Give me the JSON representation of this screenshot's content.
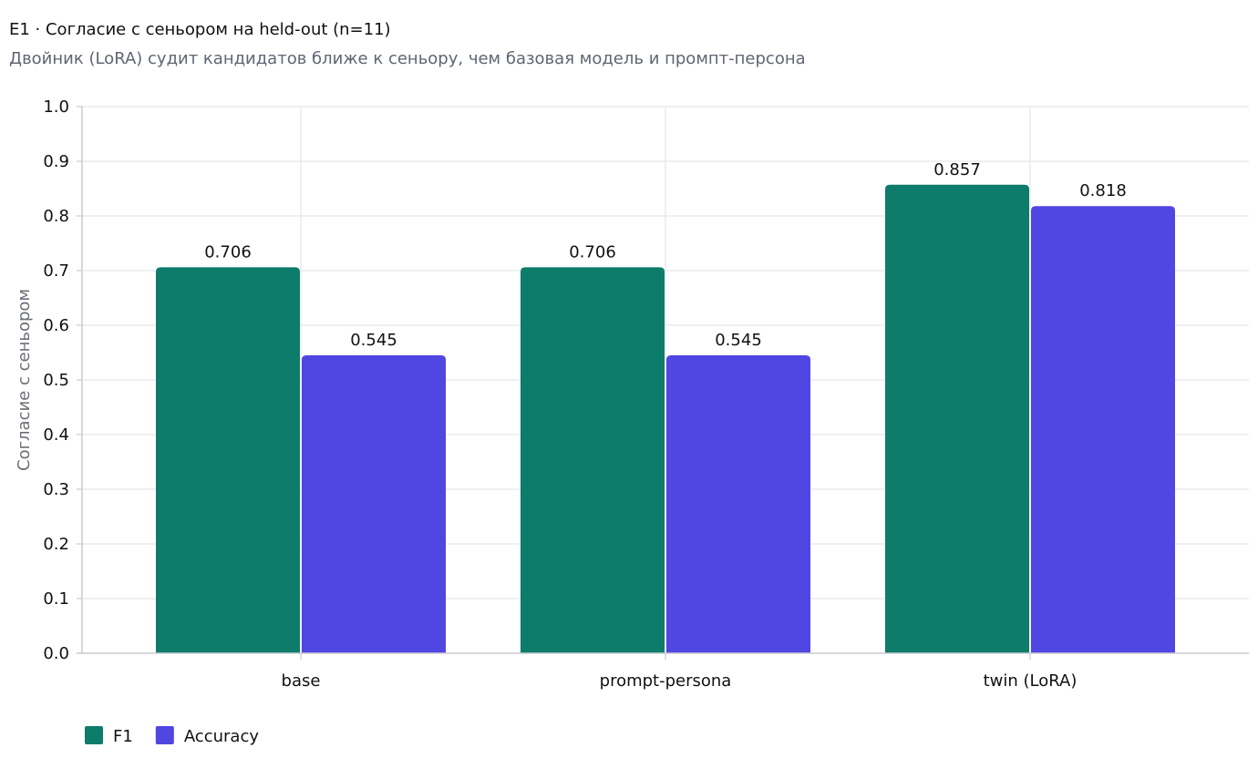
{
  "chart_data": {
    "type": "bar",
    "title": "E1 · Согласие с сеньором на held-out (n=11)",
    "subtitle": "Двойник (LoRA) судит кандидатов ближе к сеньору, чем базовая модель и промпт-персона",
    "xlabel": "",
    "ylabel": "Согласие с сеньором",
    "ylim": [
      0,
      1.0
    ],
    "yticks": [
      "0.0",
      "0.1",
      "0.2",
      "0.3",
      "0.4",
      "0.5",
      "0.6",
      "0.7",
      "0.8",
      "0.9",
      "1.0"
    ],
    "categories": [
      "base",
      "prompt-persona",
      "twin (LoRA)"
    ],
    "series": [
      {
        "name": "F1",
        "color": "#0e7c6b",
        "values": [
          0.706,
          0.706,
          0.857
        ],
        "labels": [
          "0.706",
          "0.706",
          "0.857"
        ]
      },
      {
        "name": "Accuracy",
        "color": "#5046e2",
        "values": [
          0.545,
          0.545,
          0.818
        ],
        "labels": [
          "0.545",
          "0.545",
          "0.818"
        ]
      }
    ],
    "grid": true,
    "legend": "bottom-left"
  }
}
